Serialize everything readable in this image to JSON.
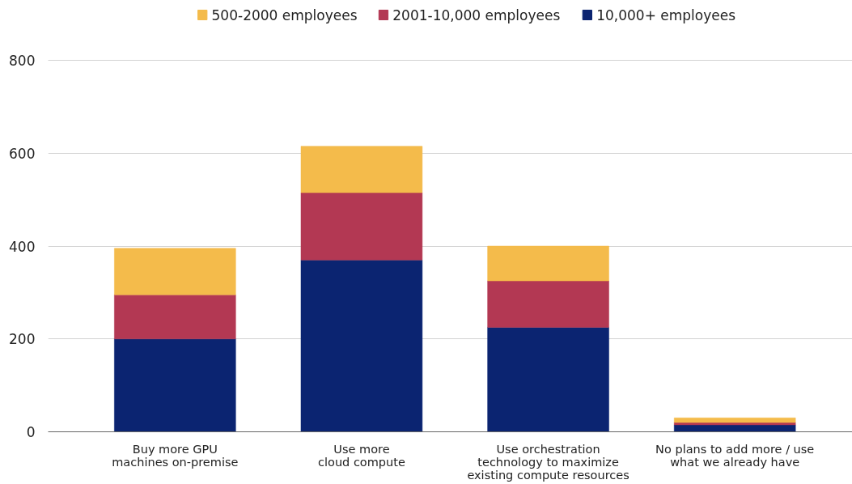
{
  "chart_data": {
    "type": "bar",
    "stacked": true,
    "categories": [
      "Buy more GPU\nmachines on-premise",
      "Use more\ncloud compute",
      "Use orchestration\ntechnology to maximize\nexisting compute resources",
      "No plans to add more / use\nwhat we already have"
    ],
    "series": [
      {
        "name": "10,000+ employees",
        "color": "#0b2471",
        "values": [
          200,
          370,
          225,
          15
        ]
      },
      {
        "name": "2001-10,000 employees",
        "color": "#b33853",
        "values": [
          95,
          145,
          100,
          5
        ]
      },
      {
        "name": "500-2000 employees",
        "color": "#f4bb4b",
        "values": [
          100,
          100,
          75,
          10
        ]
      }
    ],
    "ylim": [
      0,
      800
    ],
    "yticks": [
      0,
      200,
      400,
      600,
      800
    ],
    "grid": "y",
    "legend": "top"
  }
}
